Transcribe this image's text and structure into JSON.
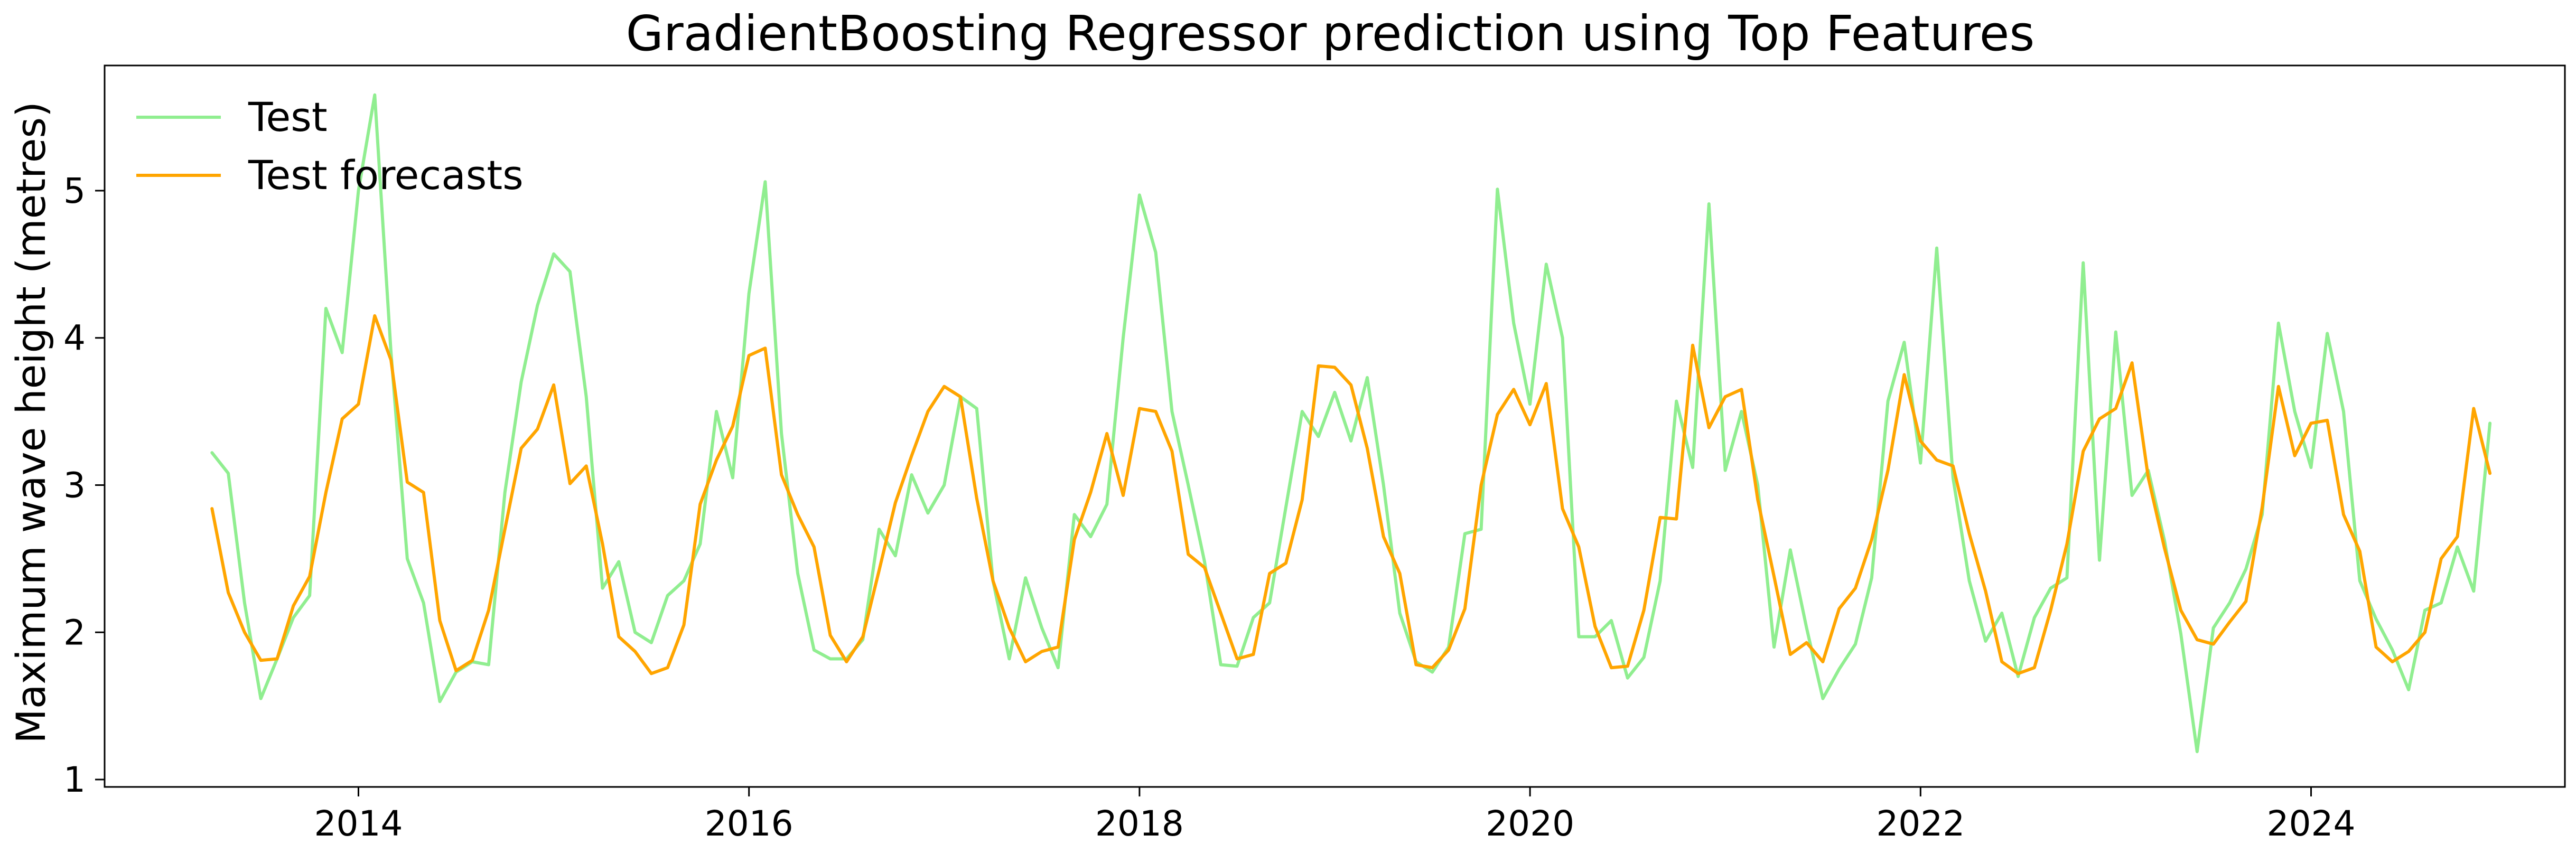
{
  "chart_data": {
    "type": "line",
    "title": "GradientBoosting Regressor prediction using Top Features",
    "xlabel": "",
    "ylabel": "Maximum wave height (metres)",
    "xlim": [
      2012.7,
      2025.3
    ],
    "ylim": [
      0.95,
      5.85
    ],
    "xticks": [
      2014,
      2016,
      2018,
      2020,
      2022,
      2024
    ],
    "yticks": [
      1,
      2,
      3,
      4,
      5
    ],
    "legend_position": "top-left",
    "grid": false,
    "x_start": 2013.25,
    "x_step": 0.08333,
    "series": [
      {
        "name": "Test",
        "color": "#90ee90",
        "values": [
          3.22,
          3.08,
          2.2,
          1.55,
          1.82,
          2.1,
          2.25,
          4.2,
          3.9,
          5.0,
          5.65,
          3.9,
          2.5,
          2.2,
          1.53,
          1.73,
          1.8,
          1.78,
          2.95,
          3.7,
          4.22,
          4.57,
          4.45,
          3.6,
          2.3,
          2.48,
          2.0,
          1.93,
          2.25,
          2.35,
          2.6,
          3.5,
          3.05,
          4.3,
          5.06,
          3.35,
          2.4,
          1.88,
          1.82,
          1.82,
          1.95,
          2.7,
          2.52,
          3.07,
          2.81,
          3.0,
          3.6,
          3.52,
          2.35,
          1.82,
          2.37,
          2.03,
          1.76,
          2.8,
          2.65,
          2.87,
          4.0,
          4.97,
          4.58,
          3.5,
          3.0,
          2.48,
          1.78,
          1.77,
          2.1,
          2.2,
          2.85,
          3.5,
          3.33,
          3.63,
          3.3,
          3.73,
          3.0,
          2.13,
          1.8,
          1.73,
          1.9,
          2.67,
          2.7,
          5.01,
          4.1,
          3.55,
          4.5,
          4.0,
          1.97,
          1.97,
          2.08,
          1.69,
          1.83,
          2.35,
          3.57,
          3.12,
          4.91,
          3.1,
          3.5,
          3.0,
          1.9,
          2.56,
          2.03,
          1.55,
          1.75,
          1.92,
          2.37,
          3.57,
          3.97,
          3.15,
          4.61,
          3.05,
          2.35,
          1.94,
          2.13,
          1.7,
          2.1,
          2.3,
          2.37,
          4.51,
          2.49,
          4.04,
          2.93,
          3.1,
          2.62,
          1.99,
          1.19,
          2.03,
          2.2,
          2.43,
          2.8,
          4.1,
          3.5,
          3.12,
          4.03,
          3.5,
          2.35,
          2.09,
          1.88,
          1.61,
          2.15,
          2.2,
          2.58,
          2.28,
          3.42
        ]
      },
      {
        "name": "Test forecasts",
        "color": "#ffa500",
        "values": [
          2.84,
          2.27,
          2.0,
          1.81,
          1.82,
          2.18,
          2.38,
          2.95,
          3.45,
          3.55,
          4.15,
          3.85,
          3.02,
          2.95,
          2.08,
          1.74,
          1.81,
          2.15,
          2.7,
          3.25,
          3.38,
          3.68,
          3.01,
          3.13,
          2.6,
          1.97,
          1.87,
          1.72,
          1.76,
          2.05,
          2.87,
          3.17,
          3.4,
          3.88,
          3.93,
          3.07,
          2.8,
          2.58,
          1.98,
          1.8,
          1.97,
          2.42,
          2.88,
          3.2,
          3.5,
          3.67,
          3.6,
          2.91,
          2.35,
          2.03,
          1.8,
          1.87,
          1.9,
          2.63,
          2.95,
          3.35,
          2.93,
          3.52,
          3.5,
          3.23,
          2.53,
          2.44,
          2.13,
          1.82,
          1.85,
          2.4,
          2.47,
          2.9,
          3.81,
          3.8,
          3.68,
          3.25,
          2.65,
          2.4,
          1.78,
          1.76,
          1.88,
          2.16,
          3.0,
          3.48,
          3.65,
          3.41,
          3.69,
          2.84,
          2.58,
          2.04,
          1.76,
          1.77,
          2.15,
          2.78,
          2.77,
          3.95,
          3.39,
          3.6,
          3.65,
          2.9,
          2.38,
          1.85,
          1.93,
          1.8,
          2.16,
          2.3,
          2.63,
          3.1,
          3.75,
          3.3,
          3.17,
          3.13,
          2.67,
          2.28,
          1.8,
          1.72,
          1.76,
          2.15,
          2.6,
          3.23,
          3.45,
          3.52,
          3.83,
          3.05,
          2.57,
          2.15,
          1.95,
          1.92,
          2.07,
          2.21,
          2.85,
          3.67,
          3.2,
          3.42,
          3.44,
          2.8,
          2.55,
          1.9,
          1.8,
          1.87,
          2.0,
          2.5,
          2.65,
          3.52,
          3.08
        ]
      }
    ]
  }
}
